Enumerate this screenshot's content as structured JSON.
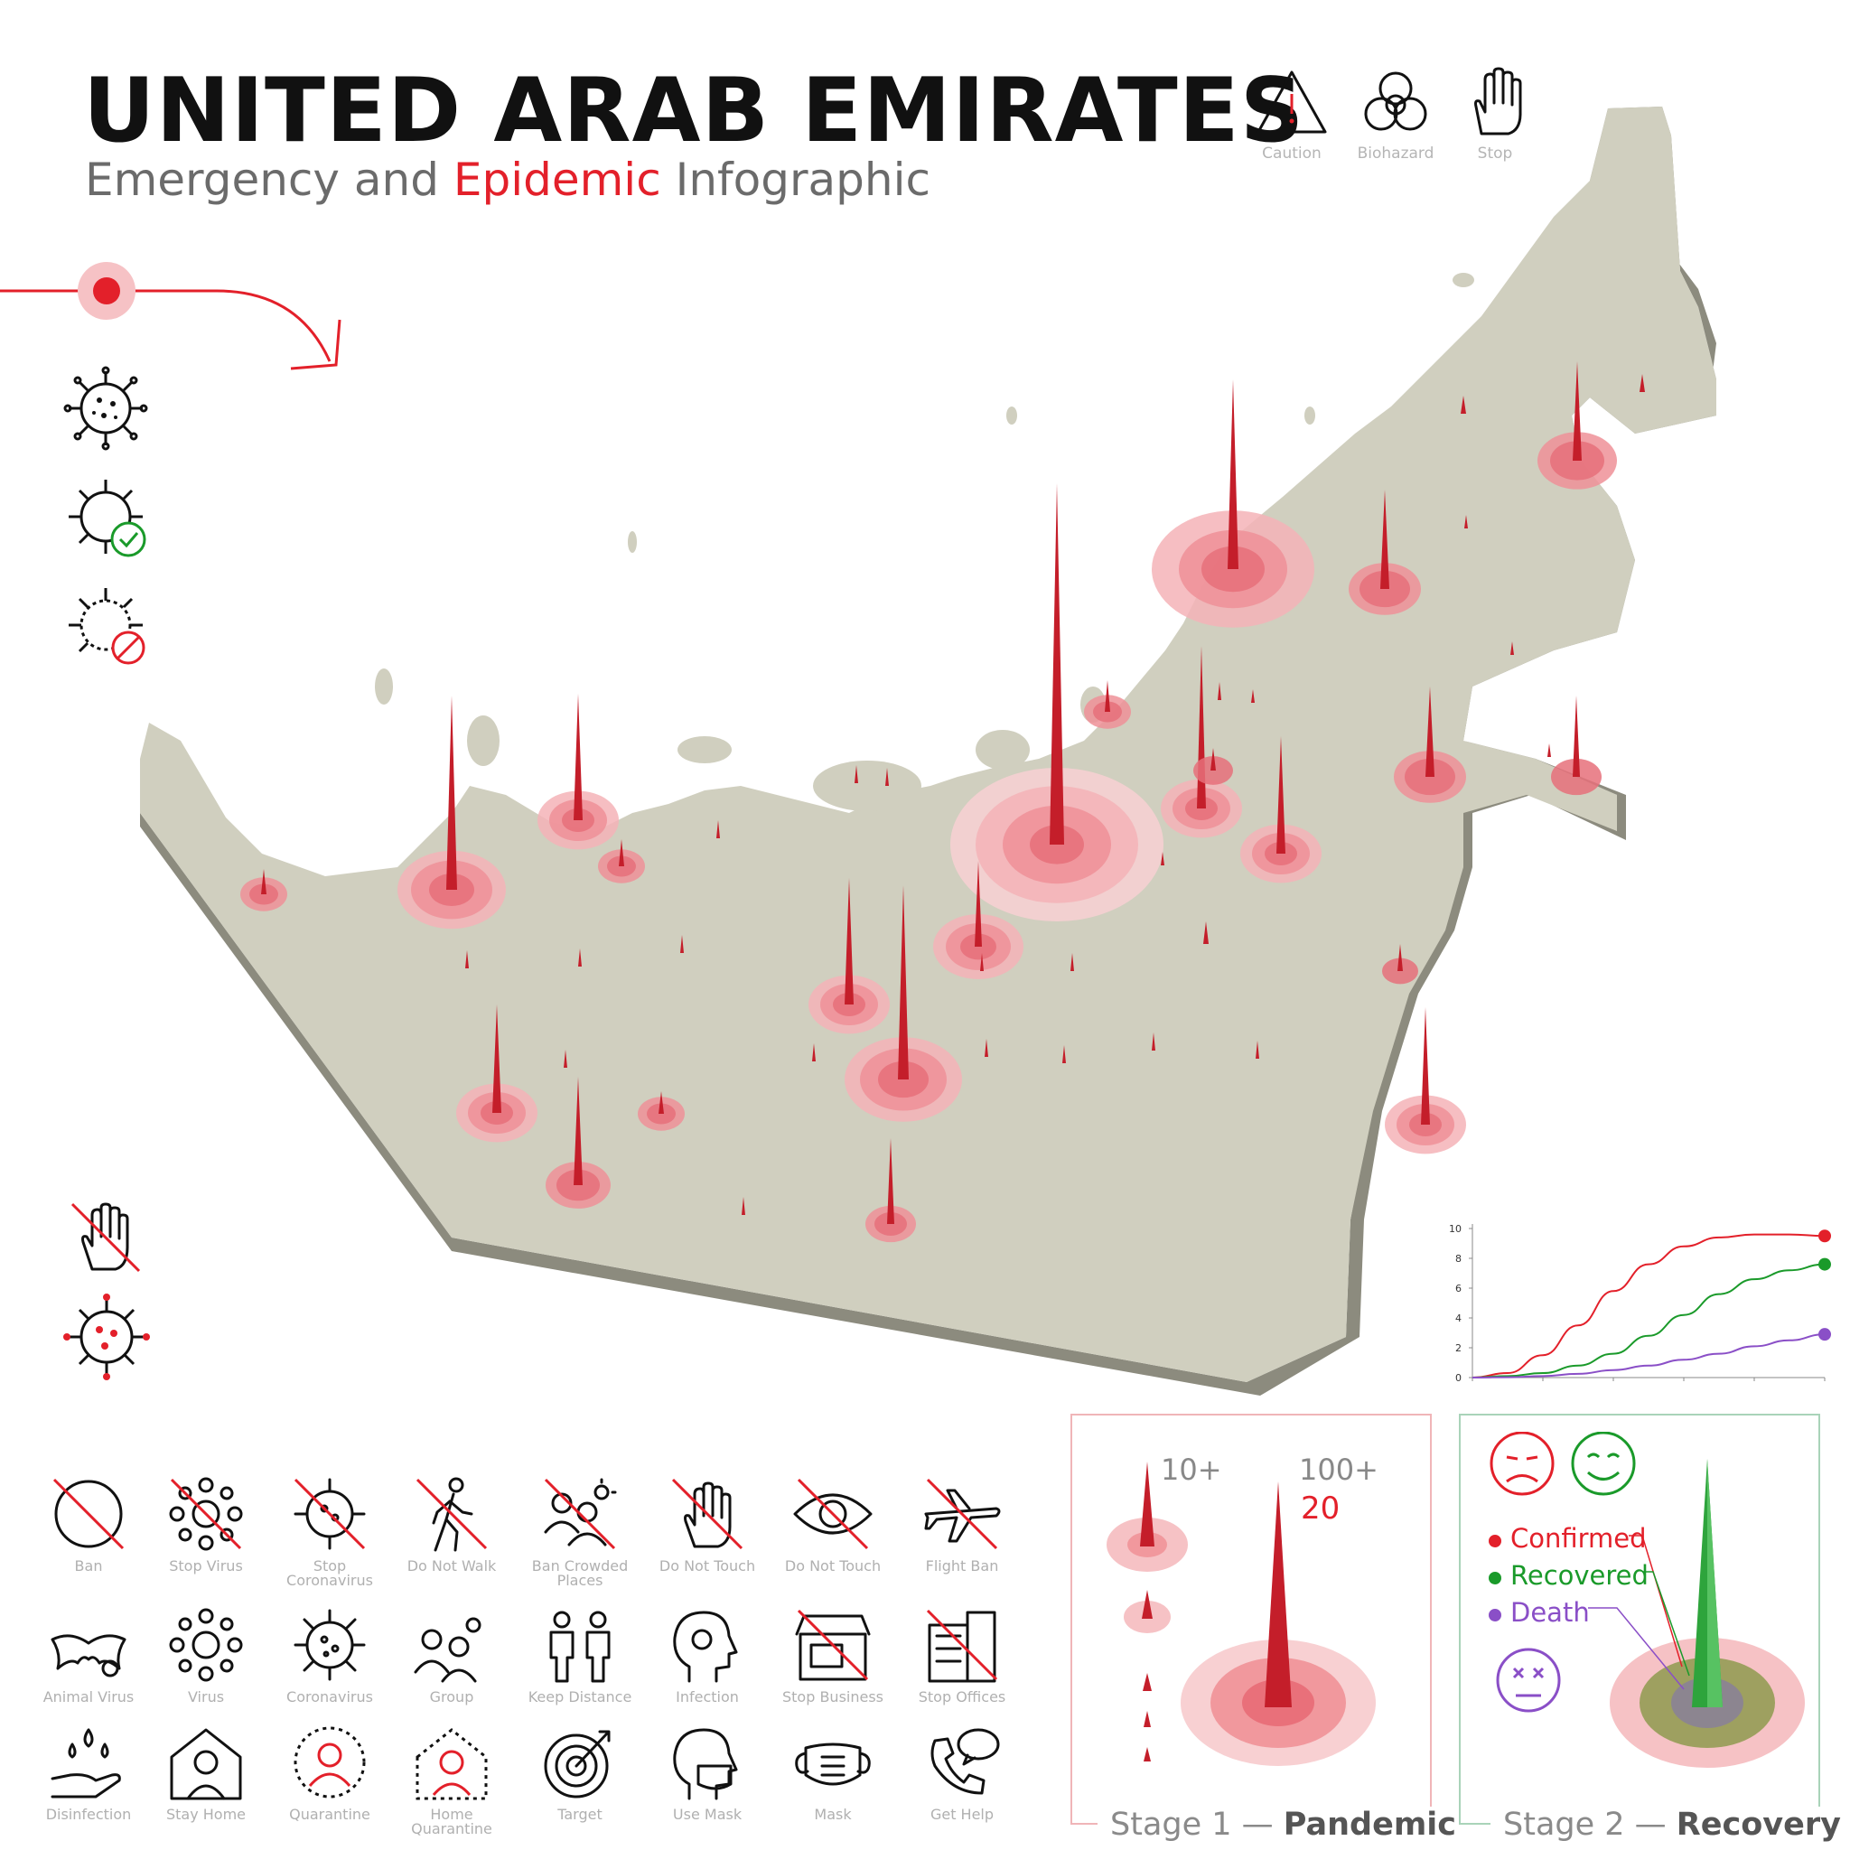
{
  "header": {
    "title": "UNITED ARAB EMIRATES",
    "subtitle_part1": "Emergency and ",
    "subtitle_part2": "Epidemic",
    "subtitle_part3": " Infographic"
  },
  "top_icons": [
    {
      "label": "Caution",
      "icon": "caution-icon"
    },
    {
      "label": "Biohazard",
      "icon": "biohazard-icon"
    },
    {
      "label": "Stop",
      "icon": "stop-hand-icon"
    }
  ],
  "icon_grid": [
    {
      "label": "Ban",
      "icon": "ban-icon"
    },
    {
      "label": "Stop Virus",
      "icon": "stop-virus-icon"
    },
    {
      "label": "Stop Coronavirus",
      "icon": "stop-coronavirus-icon"
    },
    {
      "label": "Do Not Walk",
      "icon": "do-not-walk-icon"
    },
    {
      "label": "Ban Crowded Places",
      "icon": "ban-crowded-places-icon"
    },
    {
      "label": "Do Not Touch",
      "icon": "do-not-touch-icon"
    },
    {
      "label": "Do Not Touch",
      "icon": "eye-icon"
    },
    {
      "label": "Flight Ban",
      "icon": "flight-ban-icon"
    },
    {
      "label": "Animal Virus",
      "icon": "bat-icon"
    },
    {
      "label": "Virus",
      "icon": "virus-icon"
    },
    {
      "label": "Coronavirus",
      "icon": "coronavirus-icon"
    },
    {
      "label": "Group",
      "icon": "group-icon"
    },
    {
      "label": "Keep Distance",
      "icon": "keep-distance-icon"
    },
    {
      "label": "Infection",
      "icon": "infection-icon"
    },
    {
      "label": "Stop Business",
      "icon": "stop-business-icon"
    },
    {
      "label": "Stop Offices",
      "icon": "stop-offices-icon"
    },
    {
      "label": "Disinfection",
      "icon": "disinfection-icon"
    },
    {
      "label": "Stay Home",
      "icon": "stay-home-icon"
    },
    {
      "label": "Quarantine",
      "icon": "quarantine-icon"
    },
    {
      "label": "Home Quarantine",
      "icon": "home-quarantine-icon"
    },
    {
      "label": "Target",
      "icon": "target-icon"
    },
    {
      "label": "Use Mask",
      "icon": "use-mask-icon"
    },
    {
      "label": "Mask",
      "icon": "mask-icon"
    },
    {
      "label": "Get Help",
      "icon": "get-help-icon"
    }
  ],
  "stage1": {
    "title_a": "Stage 1 — ",
    "title_b": "Pandemic",
    "label_small": "10+",
    "label_big": "100+",
    "label_big_value": "20"
  },
  "stage2": {
    "title_a": "Stage 2 — ",
    "title_b": "Recovery",
    "legend": [
      {
        "label": "Confirmed",
        "color": "#e3202a"
      },
      {
        "label": "Recovered",
        "color": "#1a9a2a"
      },
      {
        "label": "Death",
        "color": "#8a4fc7"
      }
    ]
  },
  "chart_data": {
    "type": "line",
    "x": [
      0,
      1,
      2,
      3,
      4,
      5,
      6,
      7,
      8,
      9,
      10
    ],
    "ylim": [
      0,
      10
    ],
    "yticks": [
      "0",
      "2",
      "4",
      "6",
      "8",
      "10"
    ],
    "series": [
      {
        "color": "#e3202a",
        "values": [
          0,
          0.3,
          1.5,
          3.5,
          5.8,
          7.6,
          8.8,
          9.4,
          9.6,
          9.6,
          9.5
        ]
      },
      {
        "color": "#1a9a2a",
        "values": [
          0,
          0.1,
          0.3,
          0.8,
          1.6,
          2.8,
          4.2,
          5.6,
          6.6,
          7.2,
          7.6
        ]
      },
      {
        "color": "#8a4fc7",
        "values": [
          0,
          0.02,
          0.1,
          0.25,
          0.5,
          0.8,
          1.2,
          1.6,
          2.1,
          2.5,
          2.9
        ]
      }
    ],
    "grid": false
  },
  "colors": {
    "accent": "#e3202a",
    "land": "#d0cfbf",
    "land_side": "#8c8b7e",
    "recovery_border": "#a9d3b9",
    "pandemic_border": "#f0b5b8"
  }
}
